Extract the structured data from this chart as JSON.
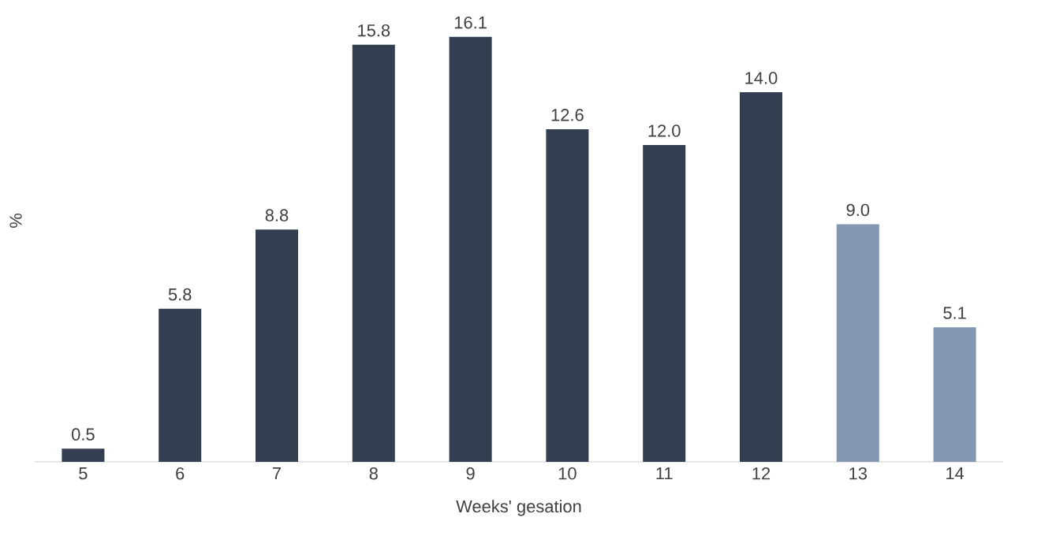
{
  "chart_data": {
    "type": "bar",
    "xlabel": "Weeks' gesation",
    "ylabel": "%",
    "categories": [
      "5",
      "6",
      "7",
      "8",
      "9",
      "10",
      "11",
      "12",
      "13",
      "14"
    ],
    "values": [
      0.5,
      5.8,
      8.8,
      15.8,
      16.1,
      12.6,
      12.0,
      14.0,
      9.0,
      5.1
    ],
    "value_labels": [
      "0.5",
      "5.8",
      "8.8",
      "15.8",
      "16.1",
      "12.6",
      "12.0",
      "14.0",
      "9.0",
      "5.1"
    ],
    "colors": [
      "#333f50",
      "#333f50",
      "#333f50",
      "#333f50",
      "#333f50",
      "#333f50",
      "#333f50",
      "#333f50",
      "#8497b0",
      "#8497b0"
    ],
    "grid": false
  }
}
